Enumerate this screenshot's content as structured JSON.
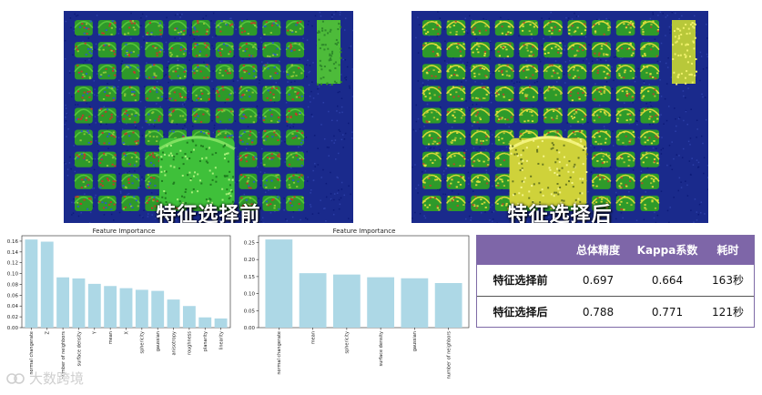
{
  "images": {
    "before_label": "特征选择前",
    "after_label": "特征选择后"
  },
  "chart_data": [
    {
      "type": "bar",
      "title": "Feature Importance",
      "categories": [
        "normal changerate",
        "Z",
        "number of neighbors",
        "surface density",
        "Y",
        "mean",
        "X",
        "sphericity",
        "gaussian",
        "anisotropy",
        "roughness",
        "planarity",
        "linearity"
      ],
      "values": [
        0.163,
        0.159,
        0.093,
        0.091,
        0.081,
        0.077,
        0.073,
        0.07,
        0.068,
        0.052,
        0.04,
        0.019,
        0.017
      ],
      "ylim": [
        0,
        0.17
      ],
      "yticks": [
        "0.00",
        "0.02",
        "0.04",
        "0.06",
        "0.08",
        "0.10",
        "0.12",
        "0.14",
        "0.16"
      ],
      "ytick_values": [
        0,
        0.02,
        0.04,
        0.06,
        0.08,
        0.1,
        0.12,
        0.14,
        0.16
      ],
      "xlabel": "",
      "ylabel": ""
    },
    {
      "type": "bar",
      "title": "Feature Importance",
      "categories": [
        "normal changerate",
        "mean",
        "sphericity",
        "surface density",
        "gaussian",
        "number of neighbors"
      ],
      "values": [
        0.259,
        0.16,
        0.156,
        0.148,
        0.145,
        0.131
      ],
      "ylim": [
        0,
        0.27
      ],
      "yticks": [
        "0.00",
        "0.05",
        "0.10",
        "0.15",
        "0.20",
        "0.25"
      ],
      "ytick_values": [
        0,
        0.05,
        0.1,
        0.15,
        0.2,
        0.25
      ],
      "xlabel": "",
      "ylabel": ""
    }
  ],
  "table": {
    "headers": [
      "",
      "总体精度",
      "Kappa系数",
      "耗时"
    ],
    "rows": [
      {
        "label": "特征选择前",
        "accuracy": "0.697",
        "kappa": "0.664",
        "time": "163秒"
      },
      {
        "label": "特征选择后",
        "accuracy": "0.788",
        "kappa": "0.771",
        "time": "121秒"
      }
    ],
    "header_color": "#7e66a8"
  },
  "watermark": {
    "text": "大数跨境"
  }
}
